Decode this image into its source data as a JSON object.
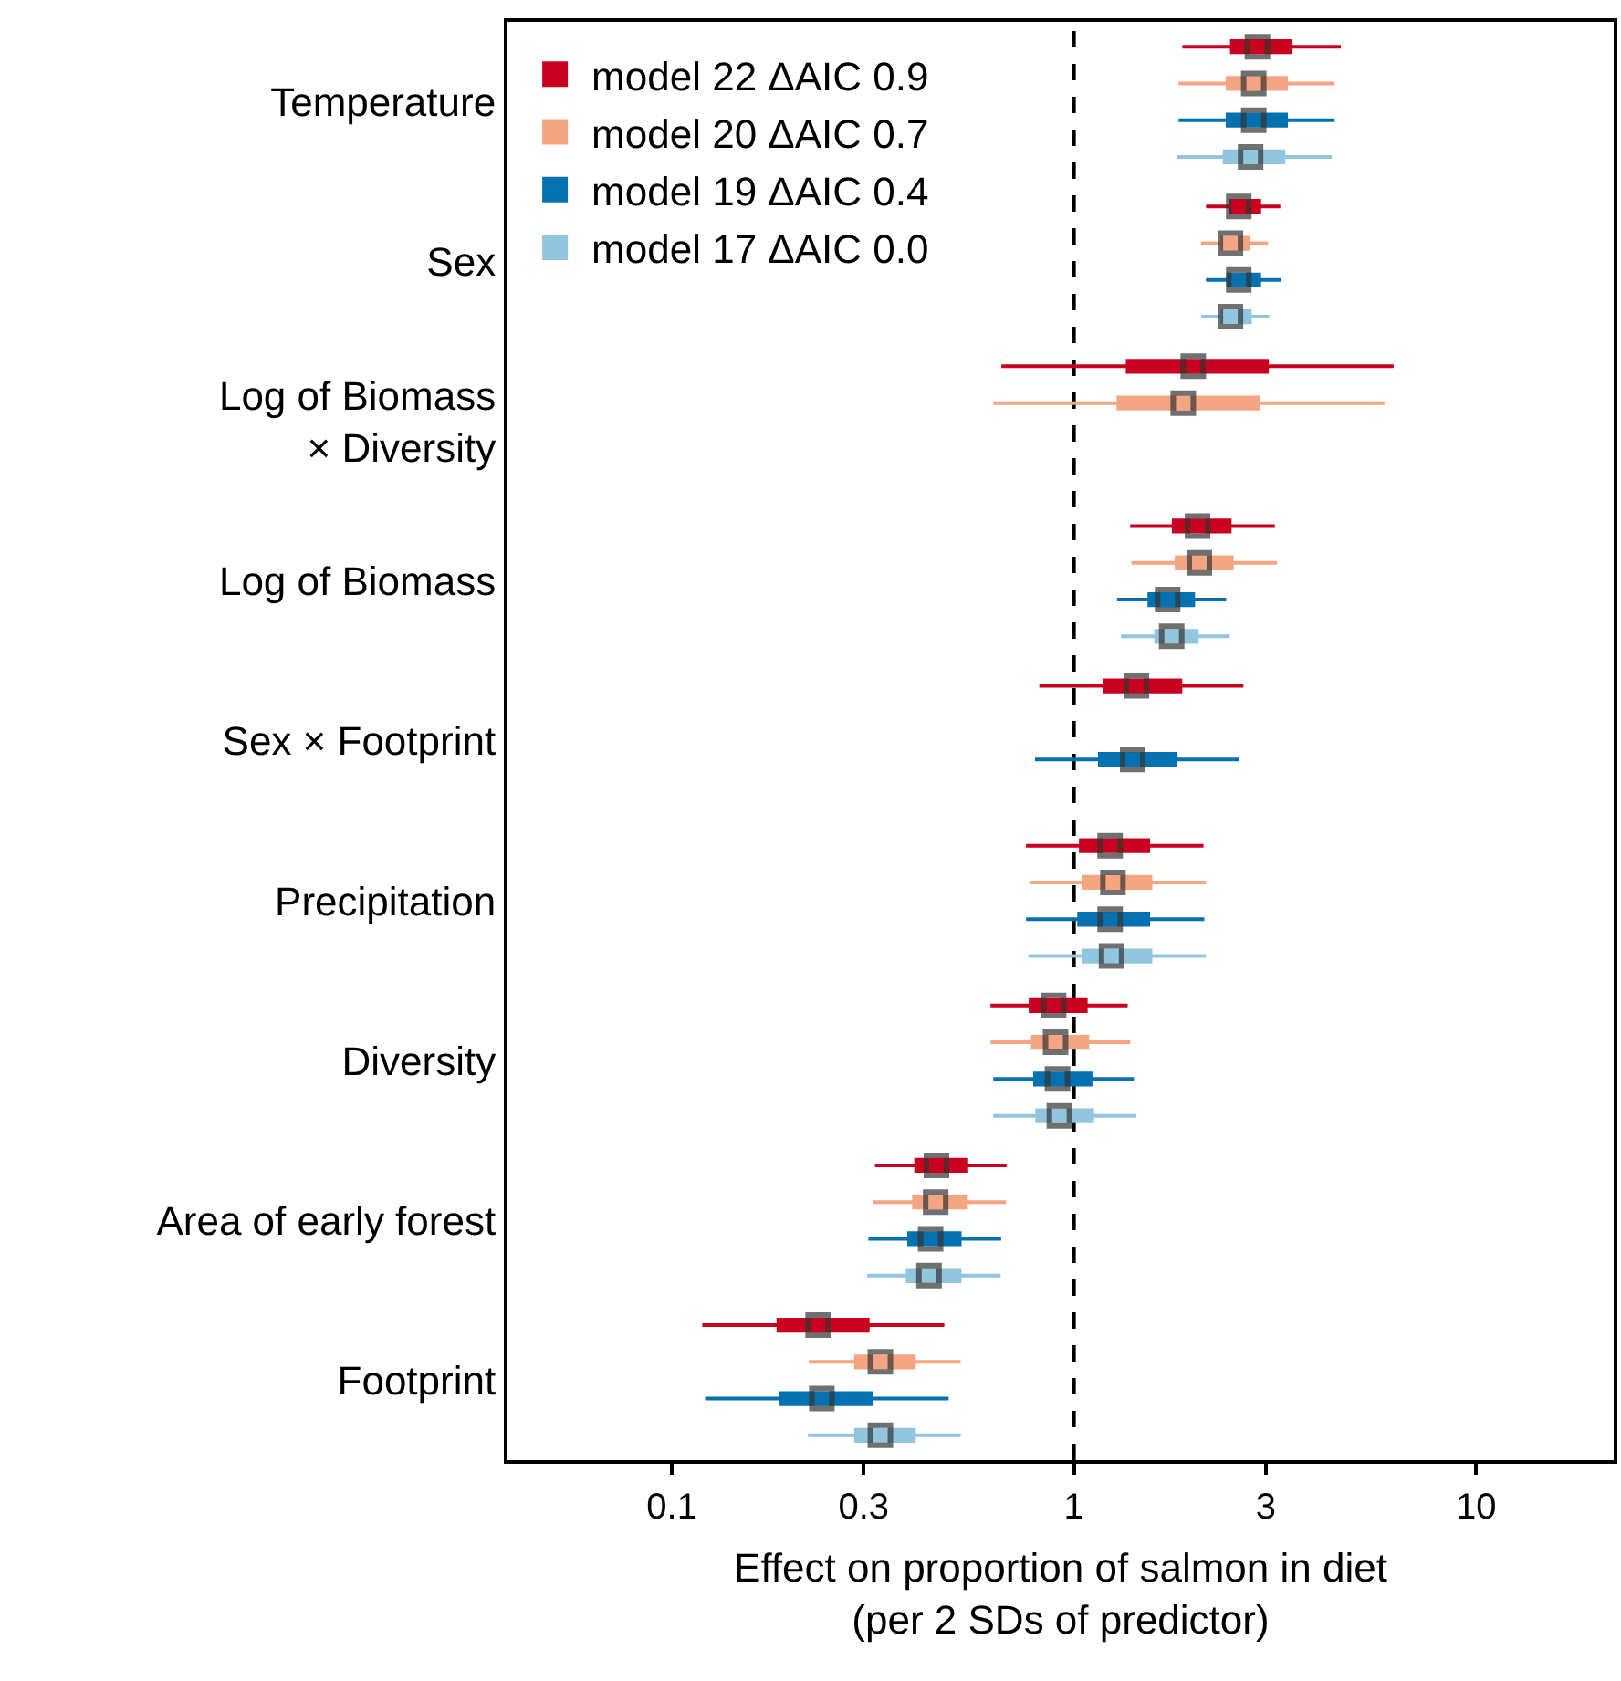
{
  "chart_data": {
    "type": "box",
    "orientation": "horizontal",
    "xlabel": "Effect on proportion of salmon in diet\n(per 2 SDs of predictor)",
    "categories": [
      "Temperature",
      "Sex",
      "Log of Biomass\n× Diversity",
      "Log of Biomass",
      "Sex × Footprint",
      "Precipitation",
      "Diversity",
      "Area of early forest",
      "Footprint"
    ],
    "log": "x",
    "xlim": [
      0.039,
      22
    ],
    "xticks": [
      0.1,
      0.3,
      1,
      3,
      10
    ],
    "grid": false,
    "legend": "top left",
    "marker": "square",
    "ref_lines": [
      {
        "axis": "x",
        "value": 1,
        "color": "#000000",
        "line_style": "dashed"
      }
    ],
    "series": [
      {
        "name": "model 22 ΔAIC 0.9",
        "color": "#ca0020",
        "boxes": [
          {
            "low": 1.86,
            "q1": 2.47,
            "median": 2.86,
            "q3": 3.46,
            "high": 4.61
          },
          {
            "low": 2.13,
            "q1": 2.45,
            "median": 2.57,
            "q3": 2.89,
            "high": 3.26
          },
          {
            "low": 0.66,
            "q1": 1.36,
            "median": 1.98,
            "q3": 3.02,
            "high": 6.24
          },
          {
            "low": 1.38,
            "q1": 1.77,
            "median": 2.03,
            "q3": 2.44,
            "high": 3.16
          },
          {
            "low": 0.82,
            "q1": 1.19,
            "median": 1.43,
            "q3": 1.84,
            "high": 2.64
          },
          {
            "low": 0.76,
            "q1": 1.04,
            "median": 1.23,
            "q3": 1.53,
            "high": 2.1
          },
          {
            "low": 0.62,
            "q1": 0.78,
            "median": 0.89,
            "q3": 1.07,
            "high": 1.36
          },
          {
            "low": 0.32,
            "q1": 0.405,
            "median": 0.455,
            "q3": 0.54,
            "high": 0.68
          },
          {
            "low": 0.119,
            "q1": 0.184,
            "median": 0.231,
            "q3": 0.307,
            "high": 0.476
          }
        ]
      },
      {
        "name": "model 20 ΔAIC 0.7",
        "color": "#f4a582",
        "boxes": [
          {
            "low": 1.82,
            "q1": 2.41,
            "median": 2.8,
            "q3": 3.37,
            "high": 4.45
          },
          {
            "low": 2.07,
            "q1": 2.34,
            "median": 2.45,
            "q3": 2.71,
            "high": 3.04
          },
          {
            "low": 0.63,
            "q1": 1.29,
            "median": 1.87,
            "q3": 2.87,
            "high": 5.92
          },
          {
            "low": 1.39,
            "q1": 1.8,
            "median": 2.05,
            "q3": 2.47,
            "high": 3.2
          },
          null,
          {
            "low": 0.78,
            "q1": 1.06,
            "median": 1.25,
            "q3": 1.55,
            "high": 2.13
          },
          {
            "low": 0.62,
            "q1": 0.79,
            "median": 0.9,
            "q3": 1.08,
            "high": 1.38
          },
          {
            "low": 0.317,
            "q1": 0.4,
            "median": 0.453,
            "q3": 0.539,
            "high": 0.678
          },
          {
            "low": 0.219,
            "q1": 0.287,
            "median": 0.33,
            "q3": 0.4,
            "high": 0.523
          }
        ]
      },
      {
        "name": "model 19 ΔAIC 0.4",
        "color": "#0571b0",
        "boxes": [
          {
            "low": 1.82,
            "q1": 2.41,
            "median": 2.8,
            "q3": 3.37,
            "high": 4.45
          },
          {
            "low": 2.13,
            "q1": 2.42,
            "median": 2.57,
            "q3": 2.89,
            "high": 3.28
          },
          null,
          {
            "low": 1.28,
            "q1": 1.54,
            "median": 1.71,
            "q3": 1.98,
            "high": 2.39
          },
          {
            "low": 0.8,
            "q1": 1.16,
            "median": 1.4,
            "q3": 1.79,
            "high": 2.58
          },
          {
            "low": 0.76,
            "q1": 1.03,
            "median": 1.23,
            "q3": 1.53,
            "high": 2.11
          },
          {
            "low": 0.63,
            "q1": 0.8,
            "median": 0.91,
            "q3": 1.1,
            "high": 1.41
          },
          {
            "low": 0.308,
            "q1": 0.389,
            "median": 0.44,
            "q3": 0.52,
            "high": 0.659
          },
          {
            "low": 0.121,
            "q1": 0.187,
            "median": 0.236,
            "q3": 0.314,
            "high": 0.488
          }
        ]
      },
      {
        "name": "model 17 ΔAIC 0.0",
        "color": "#92c5de",
        "boxes": [
          {
            "low": 1.8,
            "q1": 2.37,
            "median": 2.75,
            "q3": 3.32,
            "high": 4.38
          },
          {
            "low": 2.07,
            "q1": 2.34,
            "median": 2.45,
            "q3": 2.74,
            "high": 3.06
          },
          null,
          {
            "low": 1.31,
            "q1": 1.6,
            "median": 1.75,
            "q3": 2.02,
            "high": 2.44
          },
          null,
          {
            "low": 0.77,
            "q1": 1.06,
            "median": 1.24,
            "q3": 1.55,
            "high": 2.13
          },
          {
            "low": 0.63,
            "q1": 0.81,
            "median": 0.92,
            "q3": 1.11,
            "high": 1.43
          },
          {
            "low": 0.306,
            "q1": 0.386,
            "median": 0.436,
            "q3": 0.52,
            "high": 0.657
          },
          {
            "low": 0.218,
            "q1": 0.287,
            "median": 0.33,
            "q3": 0.4,
            "high": 0.523
          }
        ]
      },
      {
        "type": "scatter",
        "color": "#333333",
        "values": [
          2.86,
          2.57,
          1.98,
          2.03,
          1.43,
          1.23,
          0.89,
          0.455,
          0.231
        ]
      },
      {
        "type": "scatter",
        "color": "#333333",
        "values": [
          2.8,
          2.45,
          1.87,
          2.05,
          null,
          1.25,
          0.9,
          0.453,
          0.33
        ]
      },
      {
        "type": "scatter",
        "color": "#333333",
        "values": [
          2.8,
          2.57,
          null,
          1.71,
          1.4,
          1.23,
          0.91,
          0.44,
          0.236
        ]
      },
      {
        "type": "scatter",
        "color": "#333333",
        "values": [
          2.75,
          2.45,
          null,
          1.75,
          null,
          1.24,
          0.92,
          0.436,
          0.33
        ]
      }
    ]
  }
}
